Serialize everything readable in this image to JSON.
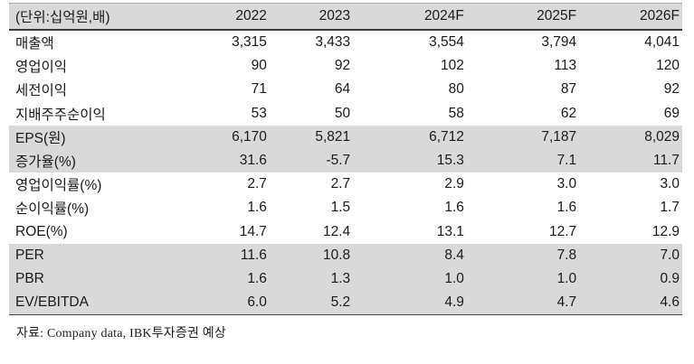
{
  "table": {
    "unit_label": "(단위:십억원,배)",
    "columns": [
      "2022",
      "2023",
      "2024F",
      "2025F",
      "2026F"
    ],
    "rows": [
      {
        "label": "매출액",
        "values": [
          "3,315",
          "3,433",
          "3,554",
          "3,794",
          "4,041"
        ],
        "shaded": false
      },
      {
        "label": "영업이익",
        "values": [
          "90",
          "92",
          "102",
          "113",
          "120"
        ],
        "shaded": false
      },
      {
        "label": "세전이익",
        "values": [
          "71",
          "64",
          "80",
          "87",
          "92"
        ],
        "shaded": false
      },
      {
        "label": "지배주주순이익",
        "values": [
          "53",
          "50",
          "58",
          "62",
          "69"
        ],
        "shaded": false
      },
      {
        "label": "EPS(원)",
        "values": [
          "6,170",
          "5,821",
          "6,712",
          "7,187",
          "8,029"
        ],
        "shaded": true
      },
      {
        "label": "증가율(%)",
        "values": [
          "31.6",
          "-5.7",
          "15.3",
          "7.1",
          "11.7"
        ],
        "shaded": true
      },
      {
        "label": "영업이익률(%)",
        "values": [
          "2.7",
          "2.7",
          "2.9",
          "3.0",
          "3.0"
        ],
        "shaded": false
      },
      {
        "label": "순이익률(%)",
        "values": [
          "1.6",
          "1.5",
          "1.6",
          "1.6",
          "1.7"
        ],
        "shaded": false
      },
      {
        "label": "ROE(%)",
        "values": [
          "14.7",
          "12.4",
          "13.1",
          "12.7",
          "12.9"
        ],
        "shaded": false
      },
      {
        "label": "PER",
        "values": [
          "11.6",
          "10.8",
          "8.4",
          "7.8",
          "7.0"
        ],
        "shaded": true
      },
      {
        "label": "PBR",
        "values": [
          "1.6",
          "1.3",
          "1.0",
          "1.0",
          "0.9"
        ],
        "shaded": true
      },
      {
        "label": "EV/EBITDA",
        "values": [
          "6.0",
          "5.2",
          "4.9",
          "4.7",
          "4.6"
        ],
        "shaded": true
      }
    ],
    "source_note": "자료: Company data, IBK투자증권 예상"
  },
  "colors": {
    "row_shade": "#d9d9d9",
    "header_shade": "#d9d9d9",
    "text": "#1a1a1a"
  }
}
